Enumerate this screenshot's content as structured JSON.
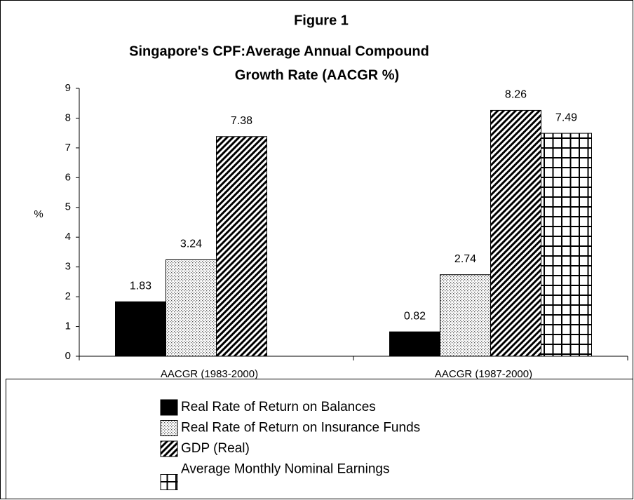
{
  "chart_data": {
    "type": "bar",
    "title": "Figure 1",
    "subtitle": [
      "Singapore's CPF:Average Annual Compound",
      "Growth Rate (AACGR %)"
    ],
    "y_label": "%",
    "categories": [
      "AACGR (1983-2000)",
      "AACGR (1987-2000)"
    ],
    "series": [
      {
        "name": "Real Rate of Return on Balances",
        "color": "#000000",
        "pattern": "solid",
        "values": [
          1.83,
          0.82
        ]
      },
      {
        "name": "Real Rate of Return on Insurance Funds",
        "color": "#000000",
        "pattern": "dots",
        "values": [
          3.24,
          2.74
        ]
      },
      {
        "name": "GDP (Real)",
        "color": "#000000",
        "pattern": "diagonal",
        "values": [
          7.38,
          8.26
        ]
      },
      {
        "name": "Average Monthly Nominal Earnings",
        "color": "#000000",
        "pattern": "grid",
        "values": [
          null,
          7.49
        ]
      }
    ],
    "ylim": [
      0,
      9
    ],
    "yticks": [
      0,
      1,
      2,
      3,
      4,
      5,
      6,
      7,
      8,
      9
    ],
    "grid": false
  }
}
